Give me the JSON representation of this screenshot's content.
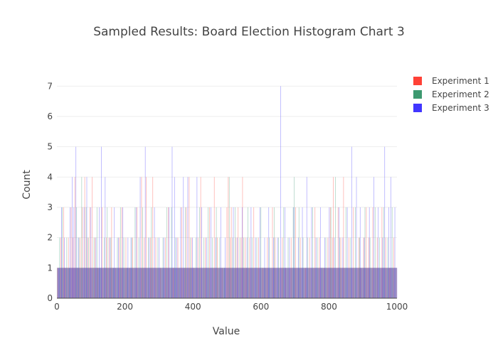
{
  "chart_data": {
    "type": "bar",
    "title": "Sampled Results: Board Election Histogram Chart 3",
    "xlabel": "Value",
    "ylabel": "Count",
    "xlim": [
      0,
      1000
    ],
    "ylim": [
      0,
      7.5
    ],
    "x_ticks": [
      0,
      200,
      400,
      600,
      800,
      1000
    ],
    "y_ticks": [
      0,
      1,
      2,
      3,
      4,
      5,
      6,
      7
    ],
    "grid": true,
    "legend_position": "top-right",
    "barmode": "overlay",
    "series": [
      {
        "name": "Experiment 1",
        "color": "#ff4136",
        "x": [
          11,
          19,
          24,
          33,
          41,
          46,
          52,
          60,
          67,
          74,
          81,
          89,
          96,
          103,
          111,
          120,
          132,
          145,
          152,
          160,
          171,
          183,
          190,
          202,
          214,
          222,
          235,
          248,
          256,
          262,
          275,
          281,
          290,
          304,
          318,
          327,
          341,
          355,
          366,
          374,
          380,
          388,
          395,
          402,
          414,
          422,
          436,
          448,
          462,
          471,
          485,
          499,
          503,
          509,
          512,
          526,
          532,
          541,
          545,
          553,
          557,
          566,
          578,
          592,
          605,
          618,
          633,
          641,
          662,
          672,
          688,
          701,
          715,
          730,
          742,
          758,
          771,
          785,
          796,
          803,
          809,
          812,
          826,
          834,
          842,
          858,
          871,
          887,
          893,
          901,
          909,
          916,
          928,
          941,
          955,
          966,
          978,
          990
        ],
        "y": [
          2,
          3,
          1,
          2,
          3,
          2,
          4,
          1,
          2,
          3,
          4,
          2,
          3,
          4,
          2,
          1,
          3,
          2,
          2,
          3,
          1,
          2,
          3,
          2,
          1,
          2,
          3,
          4,
          2,
          4,
          2,
          4,
          2,
          1,
          2,
          3,
          1,
          2,
          3,
          1,
          3,
          4,
          2,
          1,
          2,
          4,
          2,
          3,
          4,
          2,
          1,
          3,
          4,
          2,
          3,
          2,
          3,
          2,
          4,
          2,
          1,
          2,
          3,
          2,
          1,
          2,
          3,
          2,
          2,
          1,
          2,
          3,
          2,
          1,
          2,
          3,
          2,
          1,
          2,
          3,
          2,
          4,
          3,
          2,
          4,
          2,
          3,
          2,
          1,
          2,
          3,
          2,
          3,
          2,
          3,
          2,
          1,
          2
        ]
      },
      {
        "name": "Experiment 2",
        "color": "#3d9970",
        "x": [
          7,
          15,
          28,
          36,
          57,
          64,
          72,
          85,
          92,
          108,
          117,
          126,
          138,
          147,
          158,
          165,
          177,
          186,
          196,
          206,
          219,
          229,
          240,
          251,
          268,
          277,
          296,
          311,
          322,
          336,
          348,
          359,
          377,
          391,
          408,
          419,
          431,
          444,
          456,
          468,
          478,
          492,
          506,
          516,
          523,
          537,
          548,
          561,
          573,
          587,
          599,
          611,
          624,
          638,
          651,
          666,
          679,
          694,
          697,
          711,
          723,
          736,
          751,
          765,
          778,
          790,
          805,
          818,
          831,
          849,
          863,
          877,
          889,
          905,
          920,
          935,
          948,
          960,
          972,
          985
        ],
        "y": [
          2,
          3,
          2,
          1,
          3,
          2,
          4,
          3,
          2,
          2,
          3,
          1,
          2,
          3,
          2,
          1,
          2,
          3,
          2,
          1,
          2,
          3,
          2,
          3,
          2,
          3,
          2,
          2,
          3,
          3,
          2,
          1,
          3,
          2,
          2,
          3,
          2,
          3,
          2,
          3,
          2,
          1,
          4,
          2,
          3,
          2,
          2,
          3,
          2,
          2,
          3,
          1,
          2,
          3,
          2,
          3,
          2,
          3,
          4,
          3,
          2,
          2,
          3,
          2,
          1,
          2,
          3,
          4,
          2,
          3,
          2,
          3,
          2,
          3,
          2,
          3,
          2,
          3,
          2,
          3
        ]
      },
      {
        "name": "Experiment 3",
        "color": "#4136ff",
        "x": [
          5,
          13,
          21,
          38,
          44,
          49,
          55,
          62,
          79,
          87,
          99,
          114,
          124,
          130,
          141,
          155,
          168,
          180,
          193,
          208,
          217,
          232,
          244,
          259,
          271,
          286,
          300,
          314,
          329,
          338,
          345,
          352,
          363,
          371,
          384,
          398,
          411,
          425,
          439,
          452,
          466,
          481,
          494,
          518,
          530,
          544,
          558,
          570,
          583,
          596,
          610,
          622,
          636,
          648,
          657,
          670,
          683,
          696,
          709,
          721,
          734,
          748,
          761,
          774,
          787,
          800,
          815,
          829,
          840,
          853,
          866,
          880,
          891,
          903,
          918,
          931,
          944,
          957,
          963,
          975,
          981,
          993
        ],
        "y": [
          1,
          3,
          2,
          3,
          4,
          3,
          5,
          2,
          3,
          4,
          3,
          2,
          3,
          5,
          4,
          2,
          3,
          2,
          3,
          2,
          2,
          3,
          4,
          5,
          2,
          3,
          2,
          2,
          3,
          5,
          4,
          2,
          3,
          4,
          4,
          2,
          4,
          3,
          2,
          3,
          2,
          3,
          2,
          3,
          2,
          3,
          2,
          3,
          2,
          3,
          2,
          3,
          2,
          2,
          7,
          3,
          2,
          3,
          2,
          3,
          4,
          3,
          2,
          3,
          2,
          3,
          2,
          3,
          2,
          3,
          5,
          4,
          3,
          2,
          3,
          4,
          3,
          2,
          5,
          3,
          4,
          3
        ]
      }
    ]
  }
}
